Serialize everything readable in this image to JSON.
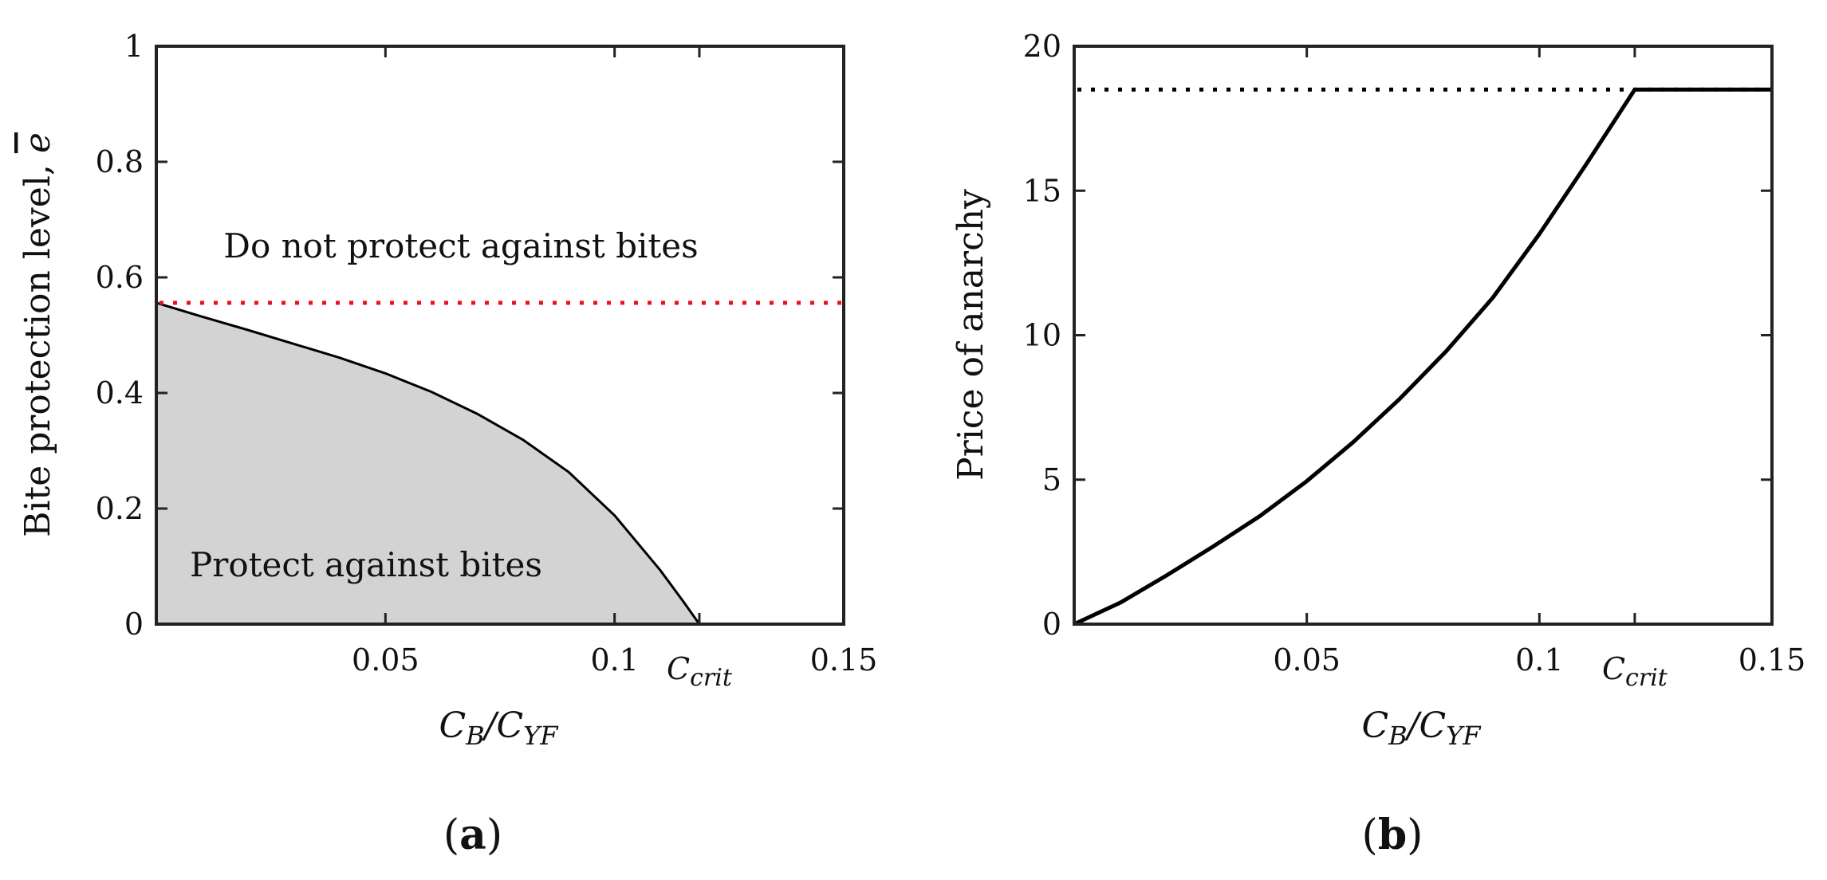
{
  "chart_data": [
    {
      "type": "area",
      "panel_label": "(a)",
      "ylabel": "Bite protection level, ē",
      "xlabel": "C_B/C_YF",
      "xlim": [
        0,
        0.15
      ],
      "ylim": [
        0,
        1
      ],
      "xticks": [
        0.05,
        0.1,
        0.15
      ],
      "xtick_labels": [
        "0.05",
        "0.1",
        "0.15"
      ],
      "yticks": [
        0,
        0.2,
        0.4,
        0.6,
        0.8,
        1
      ],
      "ytick_labels": [
        "0",
        "0.2",
        "0.4",
        "0.6",
        "0.8",
        "1"
      ],
      "ccrit": 0.1185,
      "ccrit_label": "C_crit",
      "series": [
        {
          "name": "boundary",
          "x": [
            0,
            0.01,
            0.02,
            0.03,
            0.04,
            0.05,
            0.06,
            0.07,
            0.08,
            0.09,
            0.1,
            0.11,
            0.115,
            0.1185
          ],
          "y": [
            0.556,
            0.532,
            0.509,
            0.485,
            0.461,
            0.434,
            0.402,
            0.364,
            0.319,
            0.263,
            0.188,
            0.093,
            0.039,
            0.0
          ]
        }
      ],
      "dotted_line": {
        "y": 0.556,
        "color": "#e8141c"
      },
      "annotations": {
        "upper": "Do not protect against bites",
        "lower": "Protect against bites"
      },
      "fill_color": "#d3d3d3"
    },
    {
      "type": "line",
      "panel_label": "(b)",
      "ylabel": "Price of anarchy",
      "xlabel": "C_B/C_YF",
      "xlim": [
        0,
        0.15
      ],
      "ylim": [
        0,
        20
      ],
      "xticks": [
        0.05,
        0.1,
        0.15
      ],
      "xtick_labels": [
        "0.05",
        "0.1",
        "0.15"
      ],
      "yticks": [
        0,
        5,
        10,
        15,
        20
      ],
      "ytick_labels": [
        "0",
        "5",
        "10",
        "15",
        "20"
      ],
      "ccrit": 0.1205,
      "ccrit_label": "C_crit",
      "series": [
        {
          "name": "price-of-anarchy",
          "x": [
            0,
            0.01,
            0.02,
            0.03,
            0.04,
            0.05,
            0.06,
            0.07,
            0.08,
            0.09,
            0.1,
            0.11,
            0.1205,
            0.15
          ],
          "y": [
            0,
            0.75,
            1.7,
            2.7,
            3.75,
            4.95,
            6.3,
            7.8,
            9.45,
            11.3,
            13.5,
            15.9,
            18.5,
            18.5
          ]
        }
      ],
      "dotted_line": {
        "y": 18.5,
        "color": "#000000"
      }
    }
  ]
}
